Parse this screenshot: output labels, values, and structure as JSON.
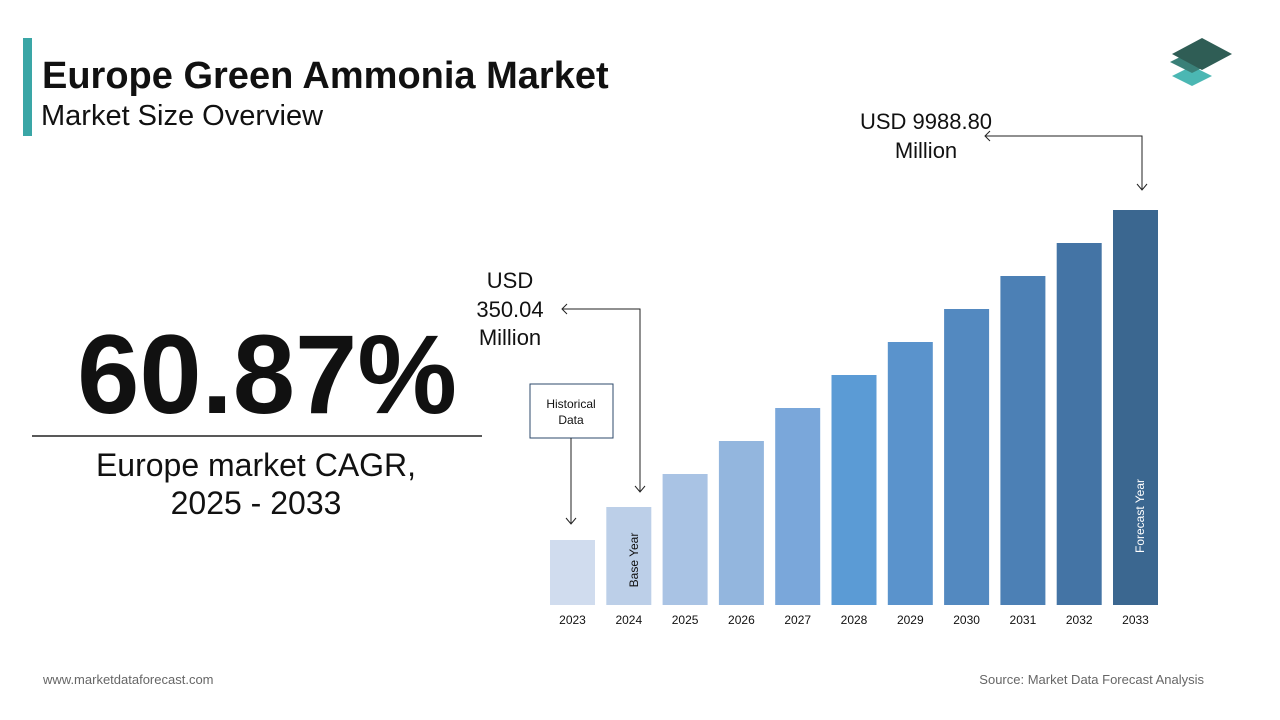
{
  "header": {
    "title": "Europe Green Ammonia Market",
    "subtitle": "Market Size Overview"
  },
  "cagr": {
    "value": "60.87%",
    "label_lines": [
      "Europe market CAGR,",
      "2025 - 2033"
    ]
  },
  "chart_data": {
    "type": "bar",
    "categories": [
      "2023",
      "2024",
      "2025",
      "2026",
      "2027",
      "2028",
      "2029",
      "2030",
      "2031",
      "2032",
      "2033"
    ],
    "values": [
      65,
      98,
      131,
      164,
      197,
      230,
      263,
      296,
      329,
      362,
      395
    ],
    "colors": [
      "#d0dcee",
      "#bccfe8",
      "#a9c3e4",
      "#93b6de",
      "#7aa7da",
      "#5b9bd5",
      "#5a93cc",
      "#5389c0",
      "#4c80b5",
      "#4474a5",
      "#3b6790"
    ],
    "ylim": [
      0,
      395
    ],
    "base_annotation": [
      "USD",
      "350.04",
      "Million"
    ],
    "final_annotation": [
      "USD 9988.80",
      "Million"
    ],
    "historical_label": [
      "Historical",
      "Data"
    ],
    "base_year_label": "Base Year",
    "forecast_year_label": "Forecast Year"
  },
  "footer": {
    "website": "www.marketdataforecast.com",
    "source": "Source: Market Data Forecast Analysis"
  }
}
